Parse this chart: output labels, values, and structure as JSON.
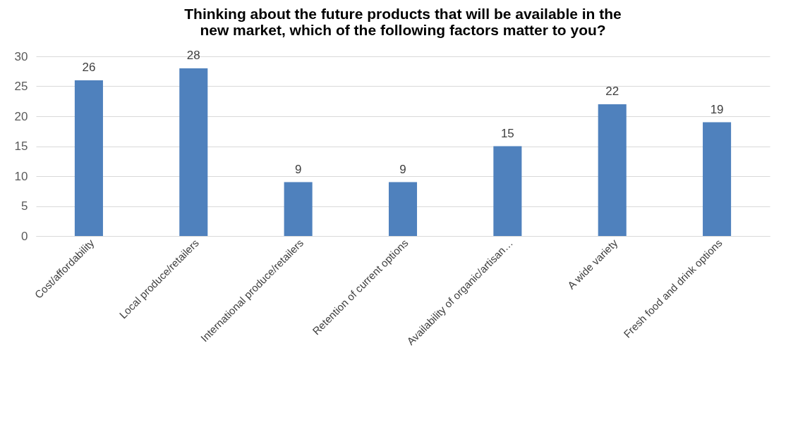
{
  "chart_data": {
    "type": "bar",
    "title": "Thinking about the future products that will be available in the\nnew market, which of the following factors matter to you?",
    "categories": [
      "Cost/affordability",
      "Local produce/retailers",
      "International produce/retailers",
      "Retention of current options",
      "Availability of organic/artisan…",
      "A wide variety",
      "Fresh food and drink options"
    ],
    "values": [
      26,
      28,
      9,
      9,
      15,
      22,
      19
    ],
    "color": "#4f81bd",
    "ylim": [
      0,
      30
    ],
    "yticks": [
      0,
      5,
      10,
      15,
      20,
      25,
      30
    ],
    "grid": "y",
    "data_labels": true
  }
}
